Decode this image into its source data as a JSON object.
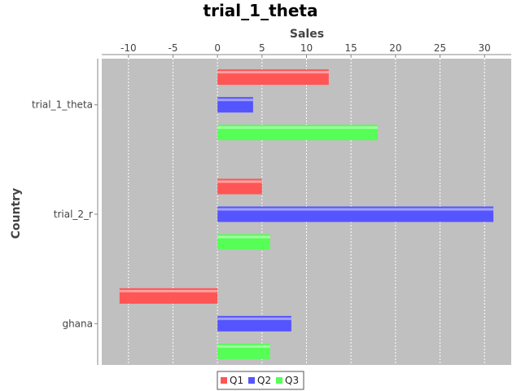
{
  "chart_data": {
    "type": "bar",
    "orientation": "horizontal",
    "title": "trial_1_theta",
    "xlabel": "Sales",
    "ylabel": "Country",
    "categories": [
      "trial_1_theta",
      "trial_2_r",
      "ghana"
    ],
    "series": [
      {
        "name": "Q1",
        "color": "#ff5555",
        "values": [
          12.5,
          5.0,
          -11.0
        ]
      },
      {
        "name": "Q2",
        "color": "#5555ff",
        "values": [
          4.0,
          31.0,
          8.3
        ]
      },
      {
        "name": "Q3",
        "color": "#55ff55",
        "values": [
          18.0,
          5.9,
          5.9
        ]
      }
    ],
    "xlim": [
      -13,
      33
    ],
    "xticks": [
      -10,
      -5,
      0,
      5,
      10,
      15,
      20,
      25,
      30
    ],
    "xtick_labels": [
      "-10",
      "-5",
      "0",
      "5",
      "10",
      "15",
      "20",
      "25",
      "30"
    ],
    "x_axis_position": "top",
    "grid": true,
    "legend_position": "bottom",
    "plot_background": "#c0c0c0"
  }
}
